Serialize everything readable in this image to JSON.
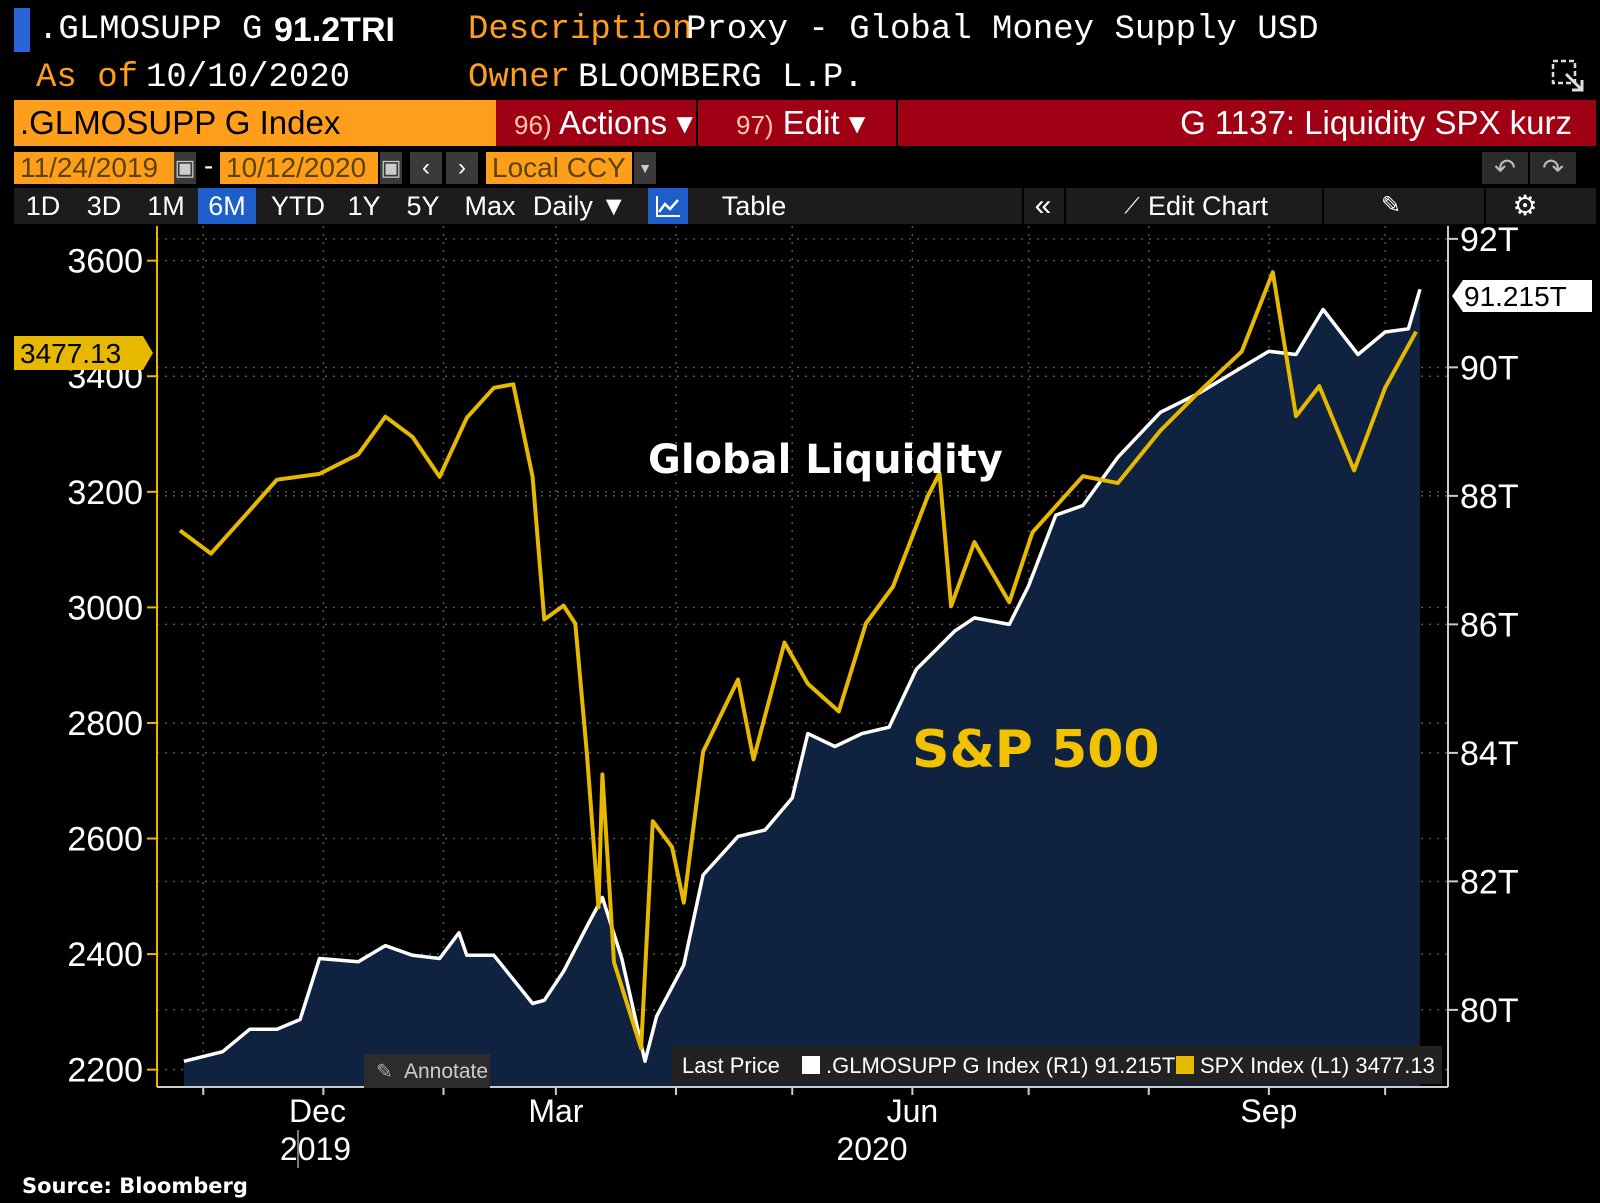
{
  "header": {
    "ticker": ".GLMOSUPP G",
    "last_value": "91.2TRI",
    "description_label": "Description",
    "description": "Proxy - Global Money Supply USD",
    "asof_label": "As of",
    "asof_date": "10/10/2020",
    "owner_label": "Owner",
    "owner": "BLOOMBERG L.P."
  },
  "titlebar": {
    "security": ".GLMOSUPP G Index",
    "actions_num": "96)",
    "actions_label": "Actions ▾",
    "edit_num": "97)",
    "edit_label": "Edit ▾",
    "chart_name": "G 1137: Liquidity SPX kurz"
  },
  "daterow": {
    "start_date": "11/24/2019",
    "dash": "-",
    "end_date": "10/12/2020",
    "currency": "Local CCY"
  },
  "tabs": {
    "ranges": [
      "1D",
      "3D",
      "1M",
      "6M",
      "YTD",
      "1Y",
      "5Y",
      "Max"
    ],
    "active": "6M",
    "frequency": "Daily ▼",
    "table": "Table",
    "edit_chart": "Edit Chart"
  },
  "colors": {
    "spx": "#e6b800",
    "liquidity_line": "#ffffff",
    "liquidity_fill": "#0f2340",
    "grid": "#5a5a5a",
    "header_orange": "#ff9e1b",
    "strip_red": "#a00014",
    "active_tab": "#1e5ec8"
  },
  "chart_data": {
    "type": "line",
    "title": "",
    "x_labels": [
      {
        "month": "Dec",
        "year": "2019"
      },
      {
        "month": "Mar",
        "year": ""
      },
      {
        "month": "Jun",
        "year": "2020"
      },
      {
        "month": "Sep",
        "year": ""
      }
    ],
    "left_axis": {
      "ticks": [
        "3600",
        "3400",
        "3200",
        "3000",
        "2800",
        "2600",
        "2400",
        "2200"
      ],
      "range": [
        2170,
        3660
      ]
    },
    "right_axis": {
      "ticks": [
        "92T",
        "90T",
        "88T",
        "86T",
        "84T",
        "82T",
        "80T"
      ],
      "range": [
        78.8,
        92.2
      ]
    },
    "spx_last_label": "3477.13",
    "liq_last_label": "91.215T",
    "annotations": {
      "liquidity": "Global Liquidity",
      "spx": "S&P 500"
    },
    "annotate_button": "Annotate",
    "legend": {
      "title": "Last Price",
      "items": [
        {
          "name": ".GLMOSUPP G Index",
          "axis": "(R1)",
          "value": "91.215T"
        },
        {
          "name": "SPX Index",
          "axis": "(L1)",
          "value": "3477.13"
        }
      ]
    },
    "series": [
      {
        "name": "SPX Index",
        "axis": "left",
        "points": [
          [
            "2019-11-25",
            3133
          ],
          [
            "2019-12-03",
            3093
          ],
          [
            "2019-12-13",
            3168
          ],
          [
            "2019-12-20",
            3221
          ],
          [
            "2019-12-31",
            3231
          ],
          [
            "2020-01-10",
            3265
          ],
          [
            "2020-01-17",
            3330
          ],
          [
            "2020-01-24",
            3295
          ],
          [
            "2020-01-31",
            3226
          ],
          [
            "2020-02-07",
            3328
          ],
          [
            "2020-02-14",
            3380
          ],
          [
            "2020-02-19",
            3386
          ],
          [
            "2020-02-24",
            3226
          ],
          [
            "2020-02-27",
            2979
          ],
          [
            "2020-03-03",
            3003
          ],
          [
            "2020-03-06",
            2972
          ],
          [
            "2020-03-09",
            2747
          ],
          [
            "2020-03-12",
            2481
          ],
          [
            "2020-03-13",
            2711
          ],
          [
            "2020-03-16",
            2386
          ],
          [
            "2020-03-23",
            2237
          ],
          [
            "2020-03-26",
            2630
          ],
          [
            "2020-03-31",
            2585
          ],
          [
            "2020-04-03",
            2489
          ],
          [
            "2020-04-08",
            2750
          ],
          [
            "2020-04-17",
            2875
          ],
          [
            "2020-04-21",
            2737
          ],
          [
            "2020-04-29",
            2939
          ],
          [
            "2020-05-05",
            2868
          ],
          [
            "2020-05-13",
            2820
          ],
          [
            "2020-05-20",
            2972
          ],
          [
            "2020-05-27",
            3036
          ],
          [
            "2020-06-05",
            3193
          ],
          [
            "2020-06-08",
            3232
          ],
          [
            "2020-06-11",
            3002
          ],
          [
            "2020-06-17",
            3113
          ],
          [
            "2020-06-26",
            3009
          ],
          [
            "2020-07-02",
            3130
          ],
          [
            "2020-07-15",
            3227
          ],
          [
            "2020-07-24",
            3215
          ],
          [
            "2020-08-04",
            3306
          ],
          [
            "2020-08-14",
            3373
          ],
          [
            "2020-08-25",
            3443
          ],
          [
            "2020-09-02",
            3580
          ],
          [
            "2020-09-08",
            3331
          ],
          [
            "2020-09-14",
            3383
          ],
          [
            "2020-09-23",
            3237
          ],
          [
            "2020-10-01",
            3380
          ],
          [
            "2020-10-09",
            3477
          ]
        ]
      },
      {
        "name": ".GLMOSUPP G Index",
        "axis": "right",
        "points": [
          [
            "2019-11-26",
            79.2
          ],
          [
            "2019-12-06",
            79.35
          ],
          [
            "2019-12-13",
            79.7
          ],
          [
            "2019-12-20",
            79.7
          ],
          [
            "2019-12-26",
            79.85
          ],
          [
            "2019-12-31",
            80.8
          ],
          [
            "2020-01-10",
            80.75
          ],
          [
            "2020-01-17",
            81.0
          ],
          [
            "2020-01-24",
            80.85
          ],
          [
            "2020-01-31",
            80.8
          ],
          [
            "2020-02-05",
            81.2
          ],
          [
            "2020-02-07",
            80.85
          ],
          [
            "2020-02-14",
            80.85
          ],
          [
            "2020-02-24",
            80.1
          ],
          [
            "2020-02-27",
            80.15
          ],
          [
            "2020-03-03",
            80.6
          ],
          [
            "2020-03-09",
            81.3
          ],
          [
            "2020-03-13",
            81.75
          ],
          [
            "2020-03-18",
            80.8
          ],
          [
            "2020-03-24",
            79.2
          ],
          [
            "2020-03-27",
            79.9
          ],
          [
            "2020-04-03",
            80.7
          ],
          [
            "2020-04-08",
            82.1
          ],
          [
            "2020-04-17",
            82.7
          ],
          [
            "2020-04-24",
            82.8
          ],
          [
            "2020-05-01",
            83.3
          ],
          [
            "2020-05-05",
            84.3
          ],
          [
            "2020-05-12",
            84.1
          ],
          [
            "2020-05-19",
            84.3
          ],
          [
            "2020-05-26",
            84.4
          ],
          [
            "2020-06-02",
            85.3
          ],
          [
            "2020-06-12",
            85.9
          ],
          [
            "2020-06-17",
            86.1
          ],
          [
            "2020-06-26",
            86.0
          ],
          [
            "2020-07-01",
            86.6
          ],
          [
            "2020-07-08",
            87.7
          ],
          [
            "2020-07-15",
            87.85
          ],
          [
            "2020-07-24",
            88.6
          ],
          [
            "2020-08-04",
            89.3
          ],
          [
            "2020-08-14",
            89.6
          ],
          [
            "2020-08-25",
            90.0
          ],
          [
            "2020-09-01",
            90.25
          ],
          [
            "2020-09-08",
            90.2
          ],
          [
            "2020-09-15",
            90.9
          ],
          [
            "2020-09-24",
            90.2
          ],
          [
            "2020-10-01",
            90.55
          ],
          [
            "2020-10-07",
            90.6
          ],
          [
            "2020-10-10",
            91.215
          ]
        ]
      }
    ]
  },
  "source": "Source: Bloomberg"
}
